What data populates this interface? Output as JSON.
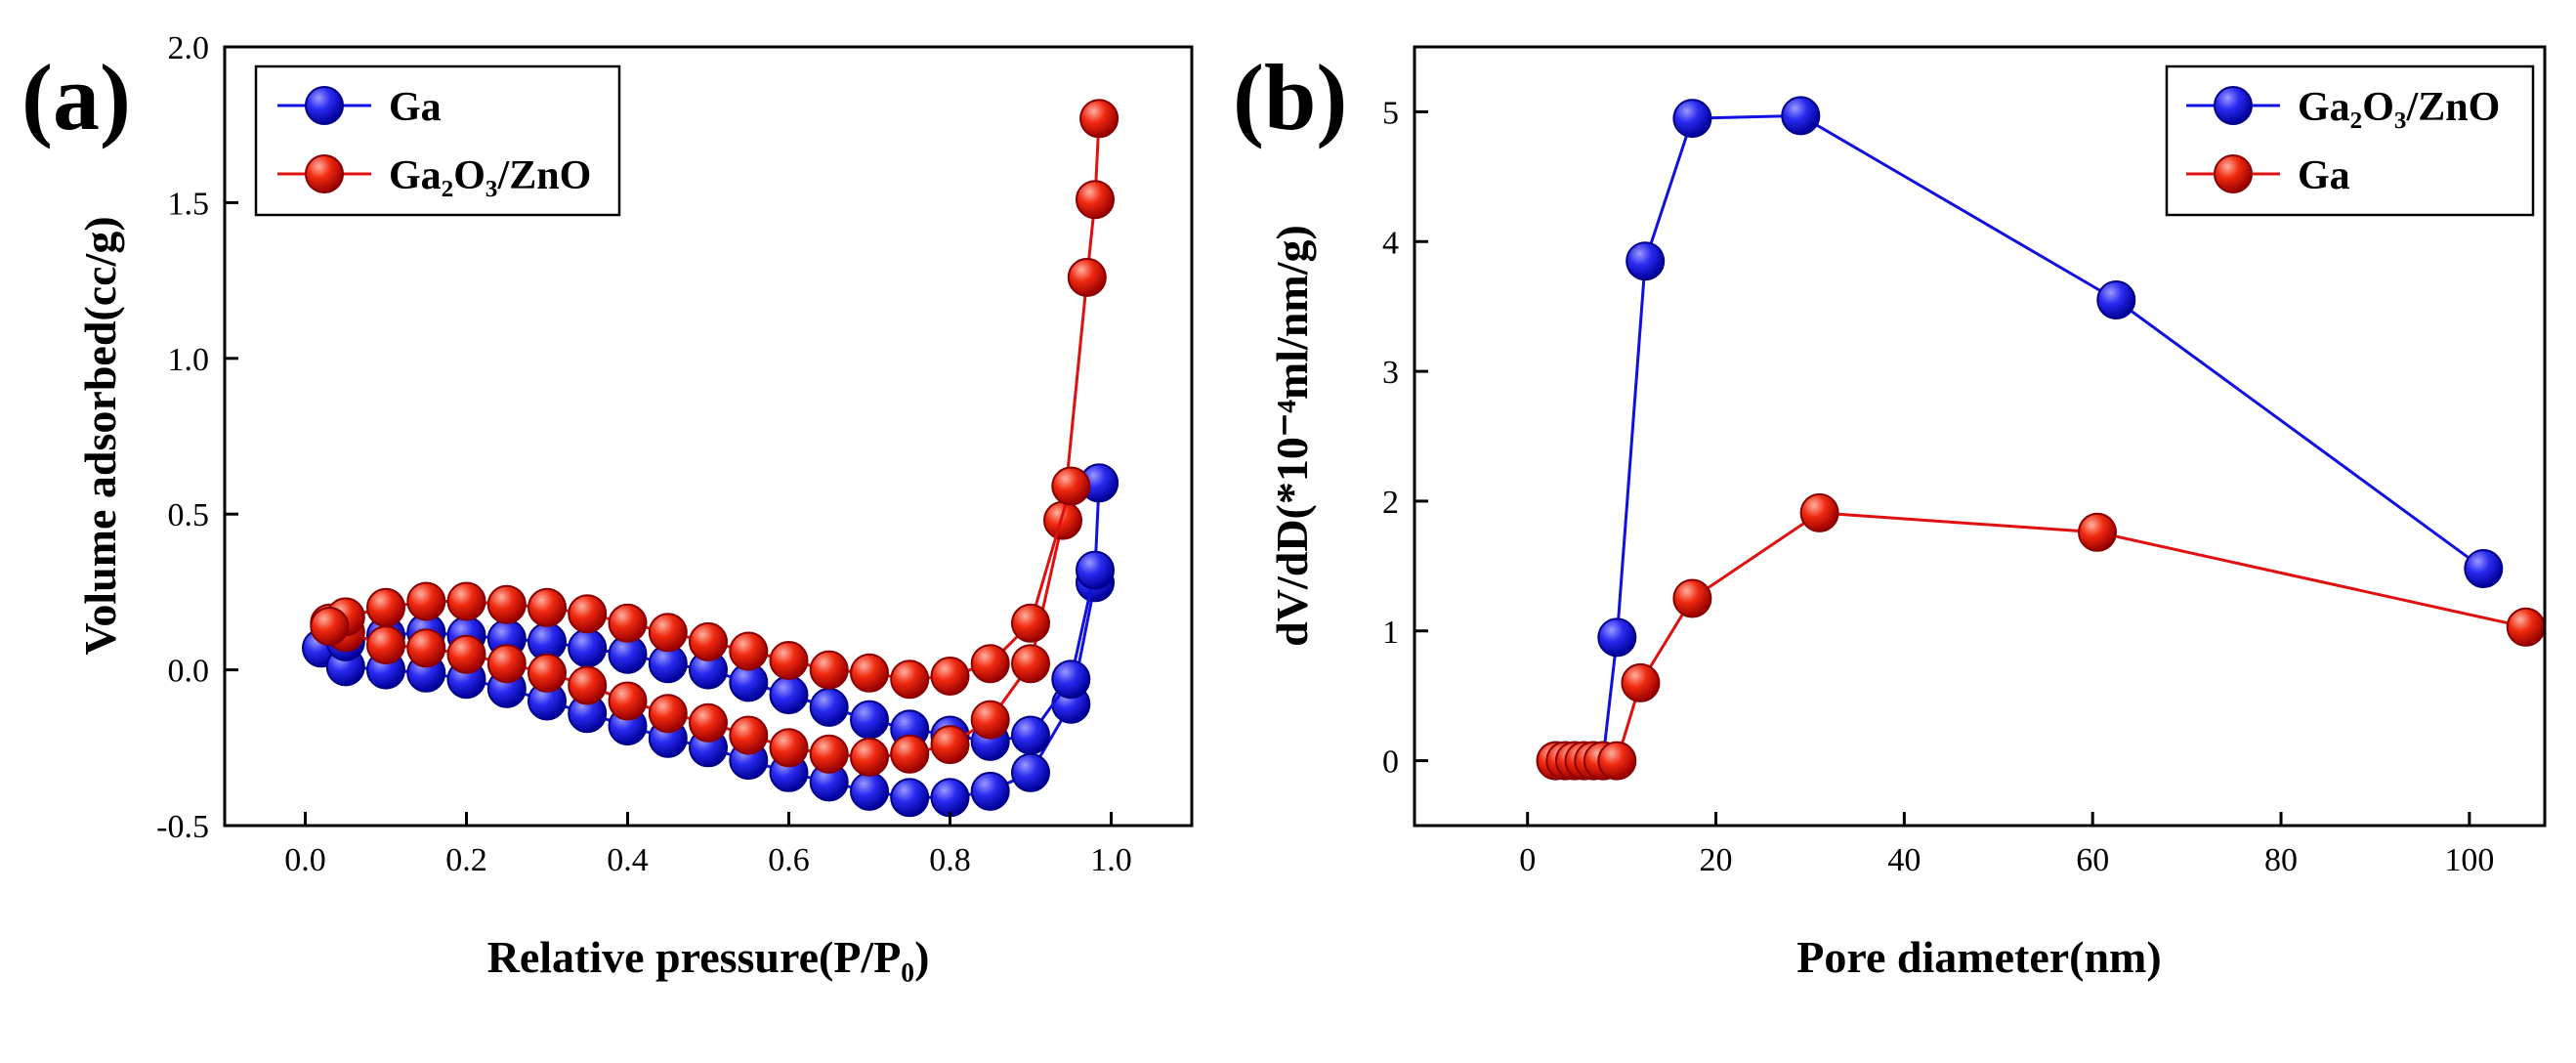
{
  "chart_data": [
    {
      "id": "a",
      "panel_label": "(a)",
      "type": "line",
      "xlabel": "Relative pressure(P/P₀)",
      "ylabel": "Volume adsorbed(cc/g)",
      "xlim": [
        -0.1,
        1.1
      ],
      "ylim": [
        -0.5,
        2.0
      ],
      "xticks": [
        0.0,
        0.2,
        0.4,
        0.6,
        0.8,
        1.0
      ],
      "xtick_labels": [
        "0.0",
        "0.2",
        "0.4",
        "0.6",
        "0.8",
        "1.0"
      ],
      "yticks": [
        -0.5,
        0.0,
        0.5,
        1.0,
        1.5,
        2.0
      ],
      "ytick_labels": [
        "-0.5",
        "0.0",
        "0.5",
        "1.0",
        "1.5",
        "2.0"
      ],
      "legend_position": "top-left",
      "legend": [
        "Ga",
        "Ga₂O₃/ZnO"
      ],
      "series": [
        {
          "name": "Ga",
          "color": "#1010e0",
          "branch": "adsorption",
          "x": [
            0.02,
            0.05,
            0.1,
            0.15,
            0.2,
            0.25,
            0.3,
            0.35,
            0.4,
            0.45,
            0.5,
            0.55,
            0.6,
            0.65,
            0.7,
            0.75,
            0.8,
            0.85,
            0.9,
            0.95,
            0.98
          ],
          "y": [
            0.07,
            0.01,
            0.0,
            -0.01,
            -0.03,
            -0.06,
            -0.1,
            -0.14,
            -0.18,
            -0.22,
            -0.25,
            -0.29,
            -0.33,
            -0.36,
            -0.39,
            -0.41,
            -0.41,
            -0.39,
            -0.33,
            -0.11,
            0.28
          ]
        },
        {
          "name": "Ga",
          "color": "#1010e0",
          "branch": "desorption",
          "x": [
            0.985,
            0.98,
            0.95,
            0.9,
            0.85,
            0.8,
            0.75,
            0.7,
            0.65,
            0.6,
            0.55,
            0.5,
            0.45,
            0.4,
            0.35,
            0.3,
            0.25,
            0.2,
            0.15,
            0.1,
            0.05
          ],
          "y": [
            0.6,
            0.32,
            -0.03,
            -0.21,
            -0.23,
            -0.21,
            -0.19,
            -0.16,
            -0.12,
            -0.08,
            -0.04,
            0.0,
            0.02,
            0.05,
            0.07,
            0.09,
            0.1,
            0.11,
            0.12,
            0.11,
            0.09
          ]
        },
        {
          "name": "Ga₂O₃/ZnO",
          "color": "#e01010",
          "branch": "adsorption",
          "x": [
            0.03,
            0.05,
            0.1,
            0.15,
            0.2,
            0.25,
            0.3,
            0.35,
            0.4,
            0.45,
            0.5,
            0.55,
            0.6,
            0.65,
            0.7,
            0.75,
            0.8,
            0.85,
            0.9,
            0.94,
            0.97,
            0.98,
            0.985
          ],
          "y": [
            0.15,
            0.12,
            0.08,
            0.07,
            0.05,
            0.02,
            -0.01,
            -0.05,
            -0.1,
            -0.14,
            -0.17,
            -0.21,
            -0.25,
            -0.27,
            -0.28,
            -0.27,
            -0.24,
            -0.16,
            0.02,
            0.48,
            1.26,
            1.51,
            1.77
          ]
        },
        {
          "name": "Ga₂O₃/ZnO",
          "color": "#e01010",
          "branch": "desorption",
          "x": [
            0.95,
            0.9,
            0.85,
            0.8,
            0.75,
            0.7,
            0.65,
            0.6,
            0.55,
            0.5,
            0.45,
            0.4,
            0.35,
            0.3,
            0.25,
            0.2,
            0.15,
            0.1,
            0.05,
            0.03
          ],
          "y": [
            0.59,
            0.15,
            0.02,
            -0.02,
            -0.03,
            -0.01,
            0.0,
            0.03,
            0.06,
            0.09,
            0.12,
            0.15,
            0.18,
            0.2,
            0.21,
            0.22,
            0.22,
            0.2,
            0.17,
            0.14
          ]
        }
      ]
    },
    {
      "id": "b",
      "panel_label": "(b)",
      "type": "line",
      "xlabel": "Pore diameter(nm)",
      "ylabel": "dV/dD(*10⁻⁴ml/nm/g)",
      "xlim": [
        -12,
        108
      ],
      "ylim": [
        -0.5,
        5.5
      ],
      "xticks": [
        0,
        20,
        40,
        60,
        80,
        100
      ],
      "xtick_labels": [
        "0",
        "20",
        "40",
        "60",
        "80",
        "100"
      ],
      "yticks": [
        0,
        1,
        2,
        3,
        4,
        5
      ],
      "ytick_labels": [
        "0",
        "1",
        "2",
        "3",
        "4",
        "5"
      ],
      "legend_position": "top-right",
      "legend": [
        "Ga₂O₃/ZnO",
        "Ga"
      ],
      "series": [
        {
          "name": "Ga₂O₃/ZnO",
          "color": "#1010e0",
          "x": [
            3,
            4,
            5,
            6,
            7,
            8,
            9.5,
            12.5,
            17.5,
            29,
            62.5,
            101.5
          ],
          "y": [
            0,
            0,
            0,
            0,
            0,
            0,
            0.95,
            3.85,
            4.95,
            4.97,
            3.55,
            1.48
          ]
        },
        {
          "name": "Ga",
          "color": "#e01010",
          "x": [
            3,
            4,
            5,
            6,
            7,
            8,
            9.5,
            12,
            17.5,
            31,
            60.5,
            106
          ],
          "y": [
            0,
            0,
            0,
            0,
            0,
            0,
            0,
            0.6,
            1.25,
            1.91,
            1.76,
            1.03
          ]
        }
      ]
    }
  ]
}
